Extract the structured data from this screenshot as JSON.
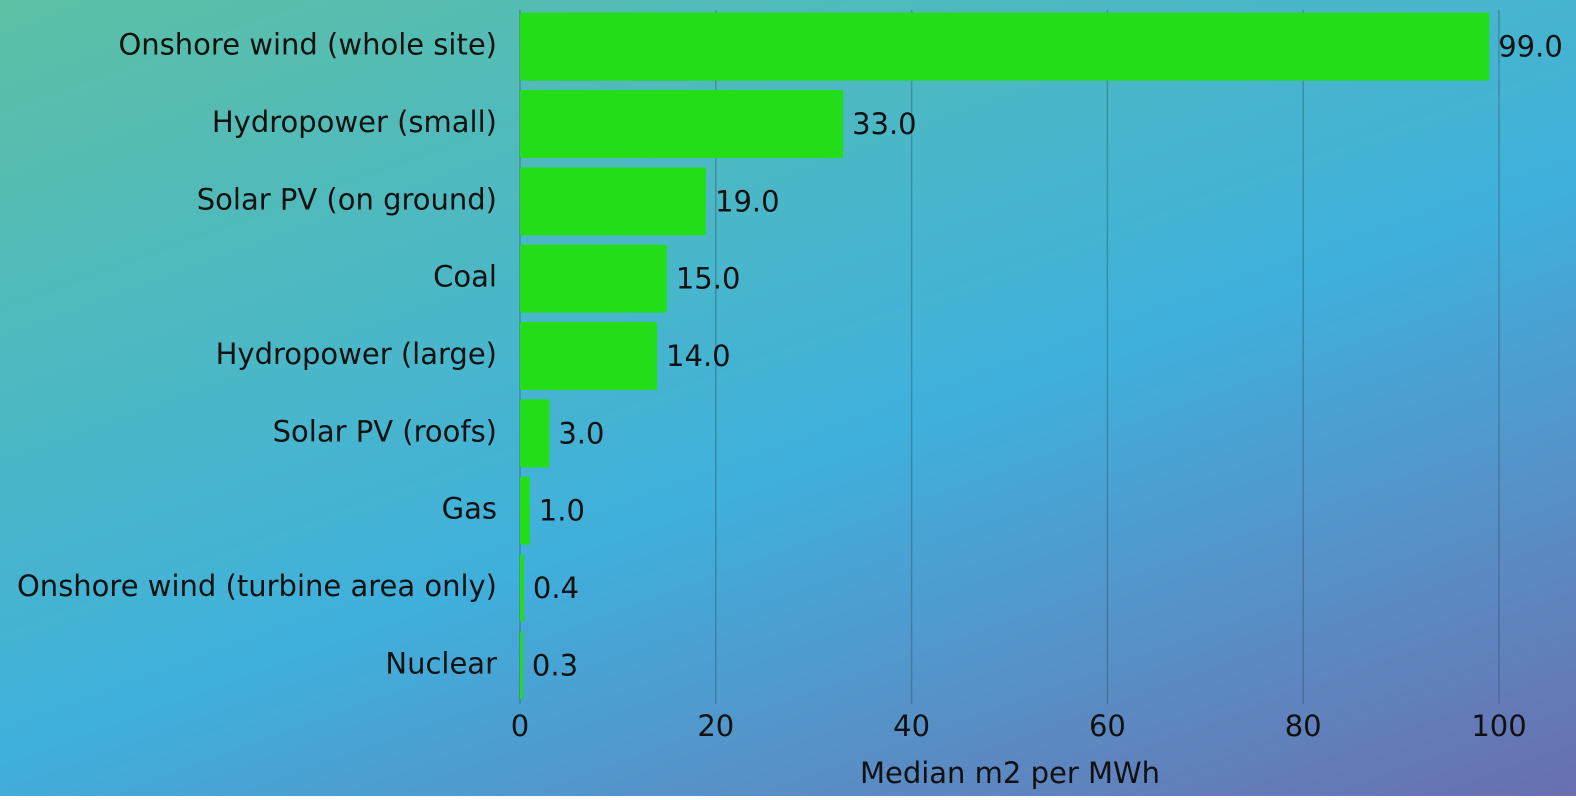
{
  "chart_data": {
    "type": "barh",
    "categories": [
      "Onshore wind (whole site)",
      "Hydropower (small)",
      "Solar PV (on ground)",
      "Coal",
      "Hydropower (large)",
      "Solar PV (roofs)",
      "Gas",
      "Onshore wind (turbine area only)",
      "Nuclear"
    ],
    "values": [
      99,
      33,
      19,
      15,
      14,
      3,
      1,
      0.4,
      0.3
    ],
    "value_labels": [
      "99.0",
      "33.0",
      "19.0",
      "15.0",
      "14.0",
      "3.0",
      "1.0",
      "0.4",
      "0.3"
    ],
    "color": "#22dd17",
    "xlabel": "Median m2 per MWh",
    "xlim": [
      0,
      100
    ],
    "xticks": [
      0,
      20,
      40,
      60,
      80,
      100
    ],
    "grid": true
  }
}
